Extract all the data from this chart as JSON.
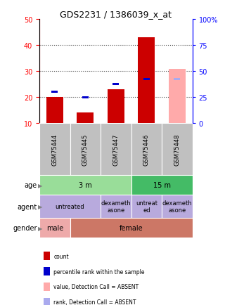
{
  "title": "GDS2231 / 1386039_x_at",
  "samples": [
    "GSM75444",
    "GSM75445",
    "GSM75447",
    "GSM75446",
    "GSM75448"
  ],
  "count_values": [
    20,
    14,
    23,
    43,
    null
  ],
  "rank_values": [
    22,
    20,
    25,
    27,
    null
  ],
  "absent_value": [
    null,
    null,
    null,
    null,
    31
  ],
  "absent_rank": [
    null,
    null,
    null,
    null,
    27
  ],
  "ylim_left": [
    10,
    50
  ],
  "ylim_right": [
    0,
    100
  ],
  "left_ticks": [
    10,
    20,
    30,
    40,
    50
  ],
  "right_ticks": [
    0,
    25,
    50,
    75,
    100
  ],
  "right_labels": [
    "0",
    "25",
    "50",
    "75",
    "100%"
  ],
  "bar_color_red": "#cc0000",
  "bar_color_pink": "#ffaaaa",
  "dot_color_blue": "#0000cc",
  "dot_color_lightblue": "#aaaaee",
  "sample_bg": "#c0c0c0",
  "age_bg_3m": "#99dd99",
  "age_bg_15m": "#44bb66",
  "agent_bg": "#b8aadd",
  "gender_male_bg": "#eeaaaa",
  "gender_female_bg": "#cc7766",
  "age_labels": [
    [
      "3 m",
      0,
      3
    ],
    [
      "15 m",
      3,
      5
    ]
  ],
  "agent_labels": [
    [
      "untreated",
      0,
      2
    ],
    [
      "dexameth\nasone",
      2,
      3
    ],
    [
      "untreat\ned",
      3,
      4
    ],
    [
      "dexameth\nasone",
      4,
      5
    ]
  ],
  "gender_labels": [
    [
      "male",
      0,
      1
    ],
    [
      "female",
      1,
      5
    ]
  ],
  "legend_items": [
    [
      "#cc0000",
      "count"
    ],
    [
      "#0000cc",
      "percentile rank within the sample"
    ],
    [
      "#ffaaaa",
      "value, Detection Call = ABSENT"
    ],
    [
      "#aaaaee",
      "rank, Detection Call = ABSENT"
    ]
  ]
}
